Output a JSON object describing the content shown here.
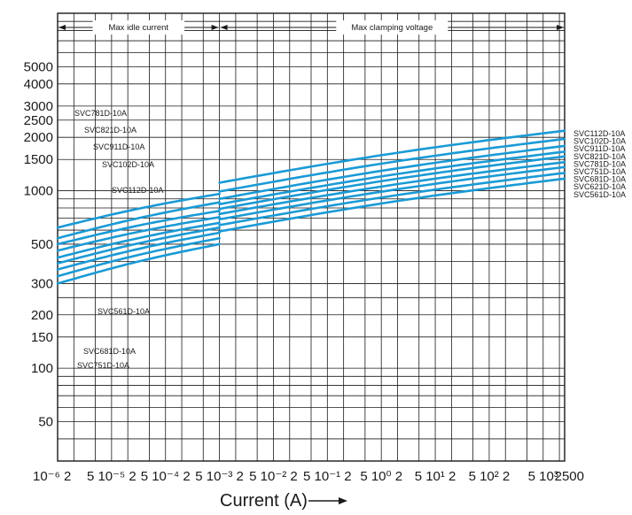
{
  "chart_data": {
    "type": "line",
    "title": "",
    "xlabel": "Current (A) —▸",
    "xlabel_text": "Current (A)",
    "ylabel": "",
    "x_tick_labels": [
      {
        "label": "10⁻⁶ 2",
        "x": 1e-06
      },
      {
        "label": "5 10⁻⁵ 2",
        "x": 1e-05
      },
      {
        "label": "5 10⁻⁴ 2",
        "x": 0.0001
      },
      {
        "label": "5 10⁻³ 2",
        "x": 0.001
      },
      {
        "label": "5 10⁻² 2",
        "x": 0.01
      },
      {
        "label": "5 10⁻¹ 2",
        "x": 0.1
      },
      {
        "label": "5 10⁰ 2",
        "x": 1
      },
      {
        "label": "5 10¹ 2",
        "x": 10
      },
      {
        "label": "5 10² 2",
        "x": 100
      },
      {
        "label": "5 10³",
        "x": 1000
      },
      {
        "label": "2500",
        "x": 2500
      }
    ],
    "y_tick_labels": [
      "5000",
      "4000",
      "3000",
      "2500",
      "2000",
      "1500",
      "1000",
      "500",
      "300",
      "200",
      "150",
      "100",
      "50"
    ],
    "region_labels": {
      "left": "Max idle current",
      "right": "Max clamping voltage"
    },
    "x_scale": "log",
    "y_scale": "log",
    "xlim": [
      1e-06,
      2500
    ],
    "ylim": [
      30,
      10000
    ],
    "grid": true,
    "line_color": "#1a9ad6",
    "idle_x_range": [
      1e-06,
      0.001
    ],
    "clamp_x_range": [
      0.001,
      2500
    ],
    "series": [
      {
        "name": "SVC561D-10A",
        "idle": [
          300,
          500
        ],
        "clamp": [
          590,
          1170
        ]
      },
      {
        "name": "SVC621D-10A",
        "idle": [
          330,
          540
        ],
        "clamp": [
          640,
          1260
        ]
      },
      {
        "name": "SVC681D-10A",
        "idle": [
          360,
          580
        ],
        "clamp": [
          690,
          1360
        ]
      },
      {
        "name": "SVC751D-10A",
        "idle": [
          390,
          620
        ],
        "clamp": [
          740,
          1450
        ]
      },
      {
        "name": "SVC781D-10A",
        "idle": [
          420,
          660
        ],
        "clamp": [
          790,
          1560
        ]
      },
      {
        "name": "SVC821D-10A",
        "idle": [
          460,
          710
        ],
        "clamp": [
          840,
          1660
        ]
      },
      {
        "name": "SVC911D-10A",
        "idle": [
          500,
          770
        ],
        "clamp": [
          900,
          1790
        ]
      },
      {
        "name": "SVC102D-10A",
        "idle": [
          540,
          860
        ],
        "clamp": [
          990,
          1960
        ]
      },
      {
        "name": "SVC112D-10A",
        "idle": [
          620,
          960
        ],
        "clamp": [
          1110,
          2180
        ]
      }
    ],
    "legend_labels_right": [
      "SVC112D-10A",
      "SVC102D-10A",
      "SVC911D-10A",
      "SVC821D-10A",
      "SVC781D-10A",
      "SVC751D-10A",
      "SVC681D-10A",
      "SVC621D-10A",
      "SVC561D-10A"
    ],
    "annotations_upper_left": [
      "SVC781D-10A",
      "SVC821D-10A",
      "SVC911D-10A",
      "SVC102D-10A",
      "SVC112D-10A"
    ],
    "annotations_lower_left": [
      "SVC561D-10A",
      "SVC681D-10A",
      "SVC751D-10A"
    ]
  }
}
